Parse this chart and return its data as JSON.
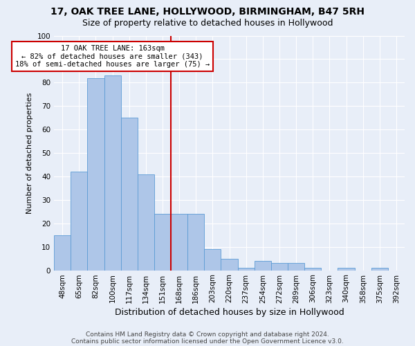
{
  "title1": "17, OAK TREE LANE, HOLLYWOOD, BIRMINGHAM, B47 5RH",
  "title2": "Size of property relative to detached houses in Hollywood",
  "xlabel": "Distribution of detached houses by size in Hollywood",
  "ylabel": "Number of detached properties",
  "categories": [
    "48sqm",
    "65sqm",
    "82sqm",
    "100sqm",
    "117sqm",
    "134sqm",
    "151sqm",
    "168sqm",
    "186sqm",
    "203sqm",
    "220sqm",
    "237sqm",
    "254sqm",
    "272sqm",
    "289sqm",
    "306sqm",
    "323sqm",
    "340sqm",
    "358sqm",
    "375sqm",
    "392sqm"
  ],
  "values": [
    15,
    42,
    82,
    83,
    65,
    41,
    24,
    24,
    24,
    9,
    5,
    1,
    4,
    3,
    3,
    1,
    0,
    1,
    0,
    1,
    0
  ],
  "bar_color": "#aec6e8",
  "bar_edge_color": "#5b9bd5",
  "vline_x_index": 7,
  "vline_color": "#cc0000",
  "annotation_box_color": "#ffffff",
  "annotation_border_color": "#cc0000",
  "annotation_text_line1": "17 OAK TREE LANE: 163sqm",
  "annotation_text_line2": "← 82% of detached houses are smaller (343)",
  "annotation_text_line3": "18% of semi-detached houses are larger (75) →",
  "bg_color": "#e8eef8",
  "ylim": [
    0,
    100
  ],
  "yticks": [
    0,
    10,
    20,
    30,
    40,
    50,
    60,
    70,
    80,
    90,
    100
  ],
  "footer1": "Contains HM Land Registry data © Crown copyright and database right 2024.",
  "footer2": "Contains public sector information licensed under the Open Government Licence v3.0.",
  "title1_fontsize": 10,
  "title2_fontsize": 9,
  "xlabel_fontsize": 9,
  "ylabel_fontsize": 8,
  "tick_fontsize": 7.5,
  "annotation_fontsize": 7.5,
  "footer_fontsize": 6.5
}
